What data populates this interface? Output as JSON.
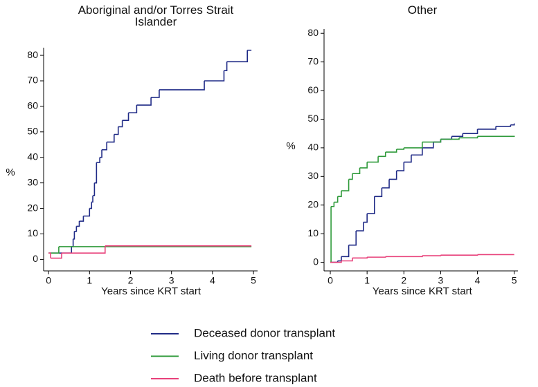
{
  "chart_data": [
    {
      "type": "line",
      "step": "post",
      "title": "Aboriginal and/or Torres Strait Islander",
      "xlabel": "Years since KRT start",
      "ylabel": "%",
      "xlim": [
        -0.12,
        5.1
      ],
      "ylim": [
        -4.5,
        83
      ],
      "xticks": [
        0,
        1,
        2,
        3,
        4,
        5
      ],
      "yticks": [
        0,
        10,
        20,
        30,
        40,
        50,
        60,
        70,
        80
      ],
      "series": [
        {
          "name": "Deceased donor transplant",
          "color": "#1f2a86",
          "x": [
            0,
            0.56,
            0.6,
            0.63,
            0.68,
            0.75,
            0.85,
            1.0,
            1.05,
            1.08,
            1.12,
            1.17,
            1.25,
            1.3,
            1.42,
            1.6,
            1.7,
            1.8,
            1.95,
            2.15,
            2.5,
            2.7,
            3.8,
            4.28,
            4.35,
            4.85,
            4.95
          ],
          "values": [
            2.5,
            5,
            8,
            11,
            13,
            15,
            17,
            20,
            22.5,
            25,
            30,
            38,
            40,
            43,
            46,
            49,
            52,
            54.5,
            57.5,
            60.5,
            63.5,
            66.5,
            70,
            74,
            77.5,
            82,
            82
          ]
        },
        {
          "name": "Living donor transplant",
          "color": "#2e9a3a",
          "x": [
            0,
            0.25,
            4.95
          ],
          "values": [
            2.5,
            5,
            5
          ]
        },
        {
          "name": "Death before transplant",
          "color": "#e8407a",
          "x": [
            0,
            0.05,
            0.32,
            1.38,
            4.95
          ],
          "values": [
            2.5,
            0.5,
            2.5,
            5.3,
            5.3
          ]
        }
      ]
    },
    {
      "type": "line",
      "step": "post",
      "title": "Other",
      "xlabel": "Years since KRT start",
      "ylabel": "%",
      "xlim": [
        -0.17,
        5.1
      ],
      "ylim": [
        -3,
        81.5
      ],
      "xticks": [
        0,
        1,
        2,
        3,
        4,
        5
      ],
      "yticks": [
        0,
        10,
        20,
        30,
        40,
        50,
        60,
        70,
        80
      ],
      "series": [
        {
          "name": "Deceased donor transplant",
          "color": "#1f2a86",
          "x": [
            0,
            0.2,
            0.3,
            0.5,
            0.7,
            0.9,
            1,
            1.2,
            1.4,
            1.6,
            1.8,
            2,
            2.2,
            2.5,
            2.8,
            3,
            3.3,
            3.6,
            4,
            4.5,
            4.9,
            5
          ],
          "values": [
            0,
            0.5,
            2,
            6,
            11,
            14,
            17,
            23,
            26,
            29,
            32,
            35,
            37.5,
            40,
            42,
            43,
            44,
            45,
            46.5,
            47.5,
            48,
            48.5
          ]
        },
        {
          "name": "Living donor transplant",
          "color": "#2e9a3a",
          "x": [
            0,
            0.02,
            0.1,
            0.2,
            0.3,
            0.5,
            0.6,
            0.8,
            1,
            1.3,
            1.5,
            1.8,
            2,
            2.5,
            3,
            3.5,
            4,
            5
          ],
          "values": [
            0,
            19.5,
            21,
            23,
            25,
            29,
            31,
            33,
            35,
            37,
            38.5,
            39.5,
            40,
            42,
            43,
            43.5,
            44,
            44.2
          ]
        },
        {
          "name": "Death before transplant",
          "color": "#e8407a",
          "x": [
            0,
            0.3,
            0.6,
            1,
            1.5,
            2.5,
            3,
            4,
            5
          ],
          "values": [
            0,
            0.5,
            1.5,
            1.8,
            2,
            2.3,
            2.5,
            2.7,
            2.7
          ]
        }
      ]
    }
  ]
}
